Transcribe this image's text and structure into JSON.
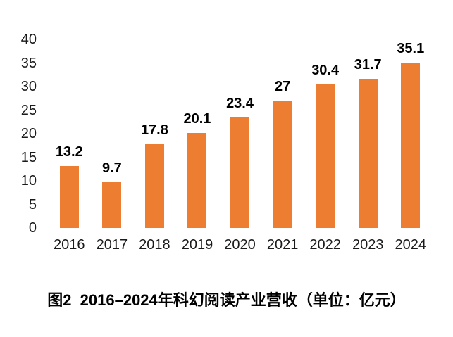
{
  "figure": {
    "caption": "图2  2016–2024年科幻阅读产业营收（单位：亿元）"
  },
  "chart_data": {
    "type": "bar",
    "categories": [
      "2016",
      "2017",
      "2018",
      "2019",
      "2020",
      "2021",
      "2022",
      "2023",
      "2024"
    ],
    "values": [
      13.2,
      9.7,
      17.8,
      20.1,
      23.4,
      27,
      30.4,
      31.7,
      35.1
    ],
    "value_labels": [
      "13.2",
      "9.7",
      "17.8",
      "20.1",
      "23.4",
      "27",
      "30.4",
      "31.7",
      "35.1"
    ],
    "title": "图2 2016–2024年科幻阅读产业营收（单位：亿元）",
    "xlabel": "",
    "ylabel": "",
    "ylim": [
      0,
      40
    ],
    "yticks": [
      0,
      5,
      10,
      15,
      20,
      25,
      30,
      35,
      40
    ],
    "bar_color": "#ED7D31",
    "text_color": "#000000",
    "grid": false,
    "legend": "none",
    "data_labels": true
  }
}
